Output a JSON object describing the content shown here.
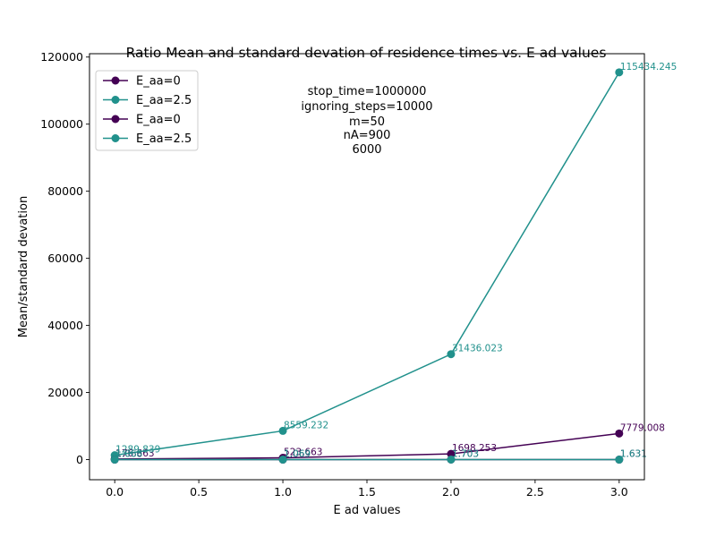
{
  "chart_data": {
    "type": "line",
    "title": "Ratio Mean and standard devation of residence times vs. E ad values",
    "xlabel": "E ad values",
    "ylabel": "Mean/standard devation",
    "x": [
      0,
      1,
      2,
      3
    ],
    "xlim": [
      -0.15,
      3.15
    ],
    "ylim": [
      -6000,
      121000
    ],
    "xticks": [
      "0.0",
      "0.5",
      "1.0",
      "1.5",
      "2.0",
      "2.5",
      "3.0"
    ],
    "xtick_values": [
      0,
      0.5,
      1,
      1.5,
      2,
      2.5,
      3
    ],
    "yticks": [
      "0",
      "20000",
      "40000",
      "60000",
      "80000",
      "100000",
      "120000"
    ],
    "ytick_values": [
      0,
      20000,
      40000,
      60000,
      80000,
      100000,
      120000
    ],
    "grid": false,
    "legend_position": "top-left",
    "series": [
      {
        "name": "E_aa=0",
        "color": "#440154",
        "values": [
          176.663,
          523.663,
          1698.253,
          7779.008
        ],
        "labels": [
          "176.663",
          "523.663",
          "1698.253",
          "7779.008"
        ]
      },
      {
        "name": "E_aa=2.5",
        "color": "#21918c",
        "values": [
          1289.839,
          8559.232,
          31436.023,
          115434.245
        ],
        "labels": [
          "1289.839",
          "8559.232",
          "31436.023",
          "115434.245"
        ]
      },
      {
        "name": "E_aa=0",
        "color": "#440154",
        "values": [
          1.068,
          1.069,
          1.703,
          1.631
        ],
        "labels": [
          "1.068",
          "1.069",
          "1.703",
          "1.631"
        ]
      },
      {
        "name": "E_aa=2.5",
        "color": "#21918c",
        "values": [
          1.068,
          1.069,
          1.703,
          1.631
        ],
        "labels": [
          "1.068",
          "1.069",
          "1.703",
          "1.631"
        ]
      }
    ],
    "annotations": [
      "stop_time=1000000",
      "ignoring_steps=10000",
      "m=50",
      "nA=900",
      "6000"
    ]
  }
}
